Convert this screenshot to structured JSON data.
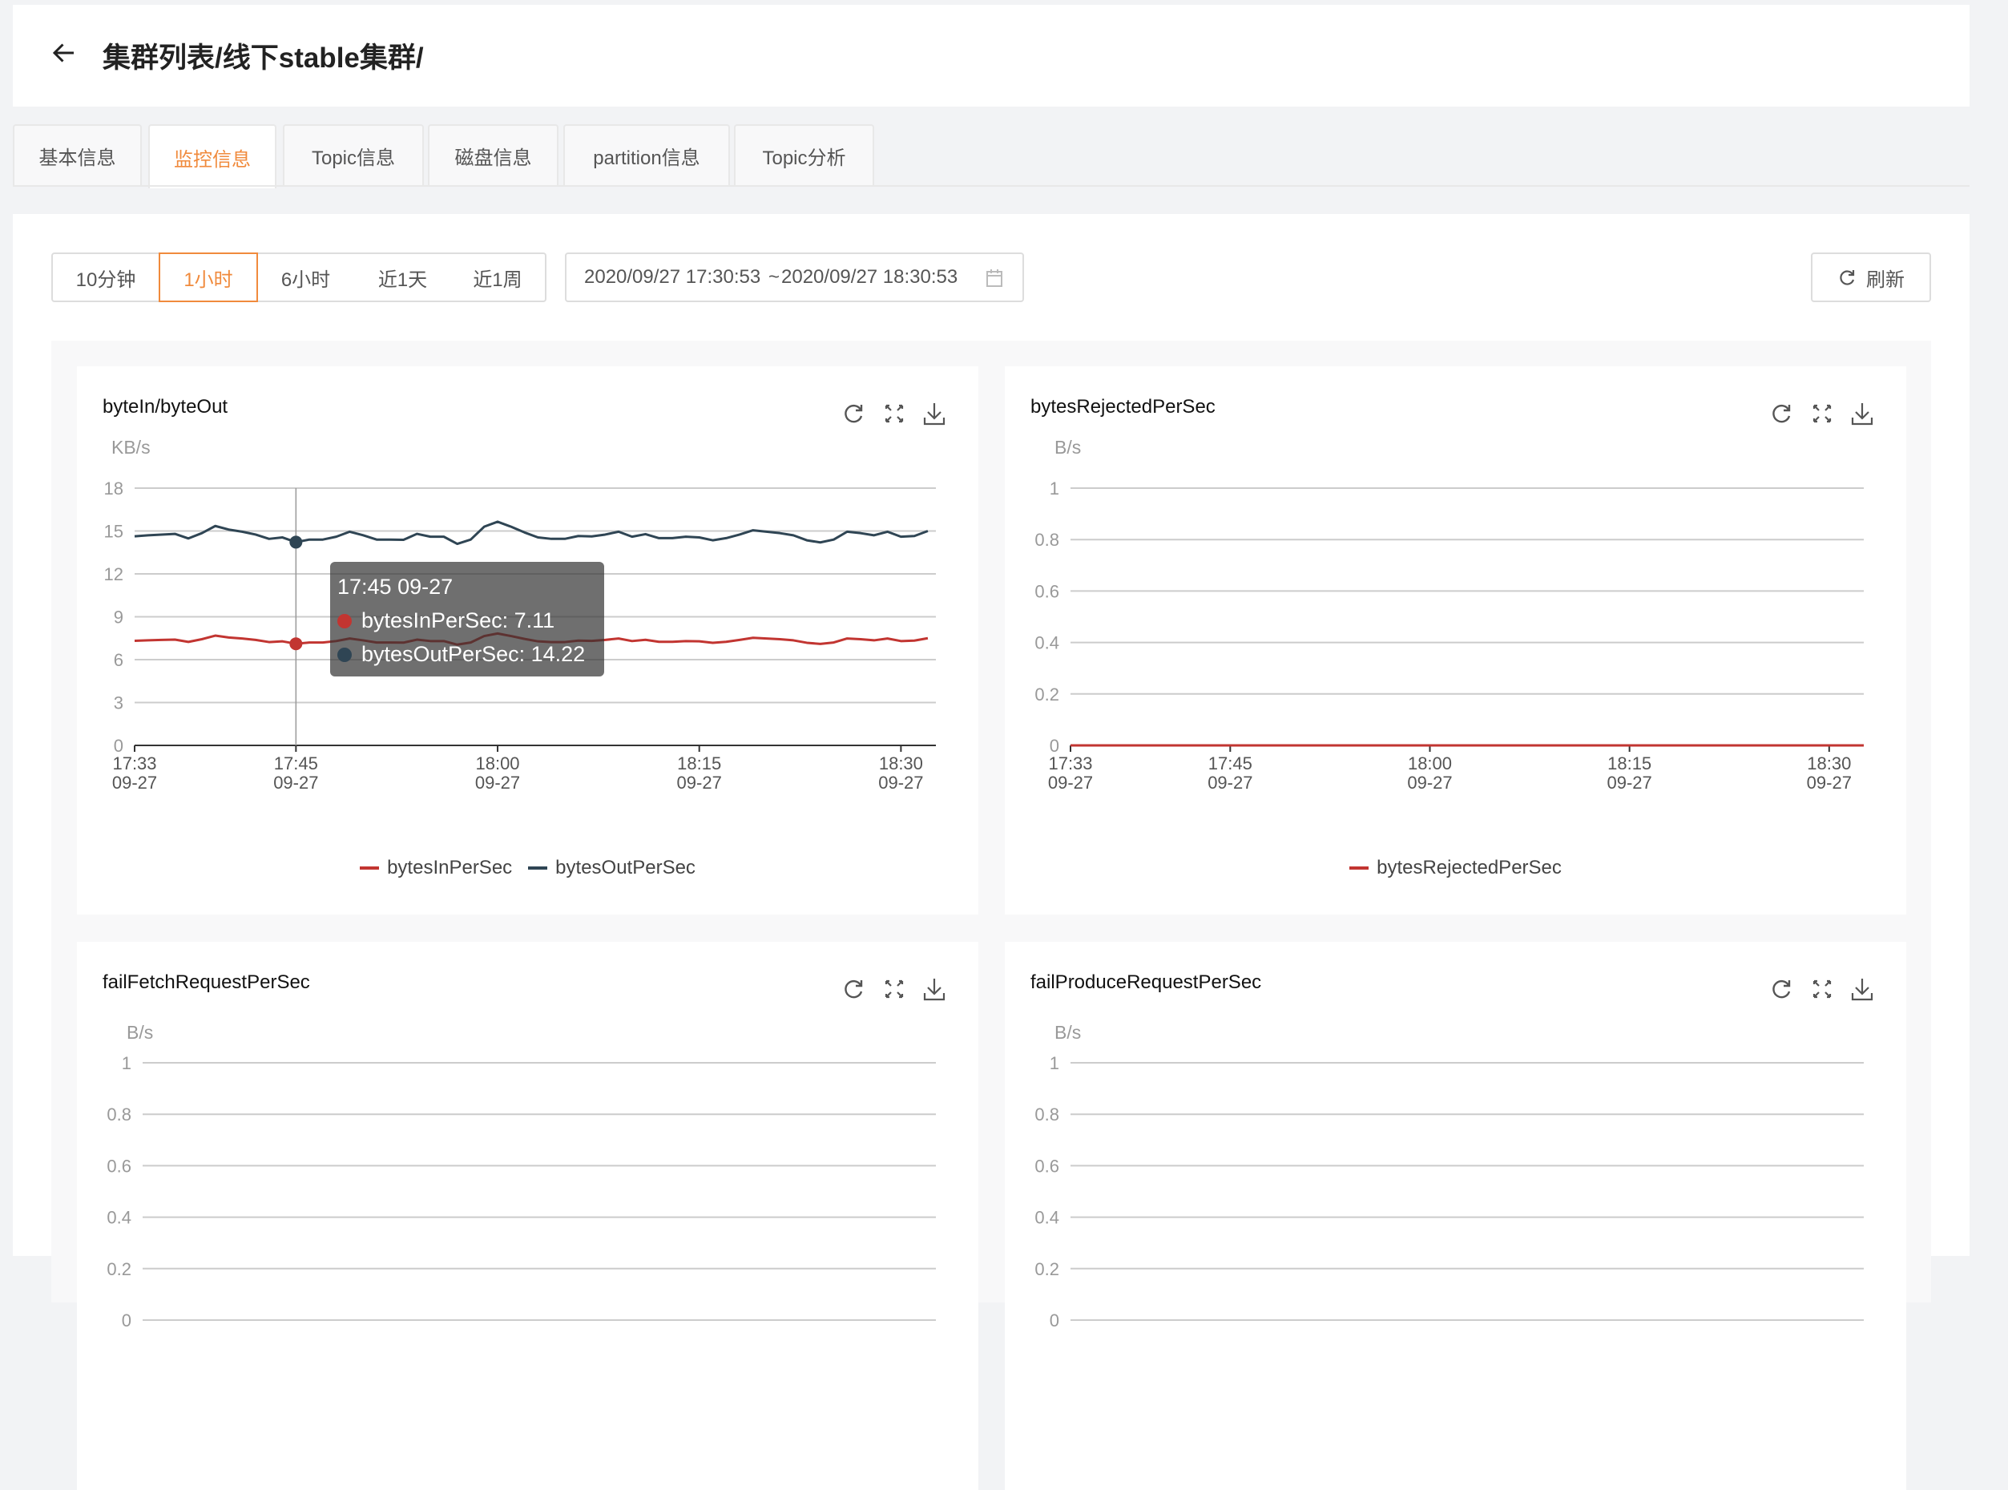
{
  "header": {
    "title": "集群列表/线下stable集群/",
    "back_icon": "arrow-left-icon"
  },
  "tabs": [
    {
      "label": "基本信息",
      "active": false
    },
    {
      "label": "监控信息",
      "active": true
    },
    {
      "label": "Topic信息",
      "active": false
    },
    {
      "label": "磁盘信息",
      "active": false
    },
    {
      "label": "partition信息",
      "active": false
    },
    {
      "label": "Topic分析",
      "active": false
    }
  ],
  "toolbar": {
    "ranges": [
      {
        "label": "10分钟",
        "active": false
      },
      {
        "label": "1小时",
        "active": true
      },
      {
        "label": "6小时",
        "active": false
      },
      {
        "label": "近1天",
        "active": false
      },
      {
        "label": "近1周",
        "active": false
      }
    ],
    "date_start": "2020/09/27 17:30:53",
    "date_sep": "~",
    "date_end": "2020/09/27 18:30:53",
    "refresh_label": "刷新"
  },
  "colors": {
    "accent": "#f08a3c",
    "bytesIn": "#c23531",
    "bytesOut": "#2f4554"
  },
  "tooltip": {
    "title": "17:45 09-27",
    "rows": [
      {
        "label": "bytesInPerSec: 7.11",
        "color": "#c23531"
      },
      {
        "label": "bytesOutPerSec: 14.22",
        "color": "#2f4554"
      }
    ]
  },
  "chart_data": [
    {
      "type": "line",
      "title": "byteIn/byteOut",
      "unit": "KB/s",
      "ylim": [
        0,
        18
      ],
      "yticks": [
        "0",
        "3",
        "6",
        "9",
        "12",
        "15",
        "18"
      ],
      "xticks": [
        {
          "time": "17:33",
          "date": "09-27"
        },
        {
          "time": "17:45",
          "date": "09-27"
        },
        {
          "time": "18:00",
          "date": "09-27"
        },
        {
          "time": "18:15",
          "date": "09-27"
        },
        {
          "time": "18:30",
          "date": "09-27"
        }
      ],
      "grid": true,
      "legend": "bottom",
      "x": [
        "17:33",
        "17:34",
        "17:35",
        "17:36",
        "17:37",
        "17:38",
        "17:39",
        "17:40",
        "17:41",
        "17:42",
        "17:43",
        "17:44",
        "17:45",
        "17:46",
        "17:47",
        "17:48",
        "17:49",
        "17:50",
        "17:51",
        "17:52",
        "17:53",
        "17:54",
        "17:55",
        "17:56",
        "17:57",
        "17:58",
        "17:59",
        "18:00",
        "18:01",
        "18:02",
        "18:03",
        "18:04",
        "18:05",
        "18:06",
        "18:07",
        "18:08",
        "18:09",
        "18:10",
        "18:11",
        "18:12",
        "18:13",
        "18:14",
        "18:15",
        "18:16",
        "18:17",
        "18:18",
        "18:19",
        "18:20",
        "18:21",
        "18:22",
        "18:23",
        "18:24",
        "18:25",
        "18:26",
        "18:27",
        "18:28",
        "18:29",
        "18:30",
        "18:31",
        "18:32"
      ],
      "series": [
        {
          "name": "bytesInPerSec",
          "color": "#c23531",
          "values": [
            7.32,
            7.35,
            7.38,
            7.4,
            7.24,
            7.43,
            7.68,
            7.55,
            7.48,
            7.38,
            7.23,
            7.28,
            7.11,
            7.2,
            7.2,
            7.3,
            7.48,
            7.35,
            7.2,
            7.2,
            7.19,
            7.4,
            7.3,
            7.3,
            7.05,
            7.2,
            7.65,
            7.83,
            7.65,
            7.45,
            7.28,
            7.23,
            7.23,
            7.33,
            7.31,
            7.38,
            7.48,
            7.3,
            7.39,
            7.25,
            7.25,
            7.3,
            7.28,
            7.18,
            7.25,
            7.38,
            7.53,
            7.48,
            7.43,
            7.35,
            7.18,
            7.1,
            7.2,
            7.48,
            7.43,
            7.35,
            7.48,
            7.3,
            7.33,
            7.5
          ]
        },
        {
          "name": "bytesOutPerSec",
          "color": "#2f4554",
          "values": [
            14.63,
            14.7,
            14.75,
            14.8,
            14.48,
            14.85,
            15.35,
            15.1,
            14.95,
            14.75,
            14.45,
            14.55,
            14.22,
            14.4,
            14.4,
            14.6,
            14.95,
            14.7,
            14.4,
            14.4,
            14.38,
            14.8,
            14.6,
            14.6,
            14.1,
            14.4,
            15.3,
            15.65,
            15.3,
            14.9,
            14.55,
            14.45,
            14.45,
            14.65,
            14.62,
            14.75,
            14.95,
            14.6,
            14.78,
            14.5,
            14.5,
            14.6,
            14.55,
            14.35,
            14.5,
            14.75,
            15.05,
            14.95,
            14.85,
            14.7,
            14.35,
            14.2,
            14.4,
            14.95,
            14.85,
            14.7,
            14.95,
            14.6,
            14.65,
            15.0
          ]
        }
      ],
      "highlight_x": "17:45"
    },
    {
      "type": "line",
      "title": "bytesRejectedPerSec",
      "unit": "B/s",
      "ylim": [
        0,
        1
      ],
      "yticks": [
        "0",
        "0.2",
        "0.4",
        "0.6",
        "0.8",
        "1"
      ],
      "xticks": [
        {
          "time": "17:33",
          "date": "09-27"
        },
        {
          "time": "17:45",
          "date": "09-27"
        },
        {
          "time": "18:00",
          "date": "09-27"
        },
        {
          "time": "18:15",
          "date": "09-27"
        },
        {
          "time": "18:30",
          "date": "09-27"
        }
      ],
      "grid": true,
      "legend": "bottom",
      "x": [
        "17:33",
        "18:32"
      ],
      "series": [
        {
          "name": "bytesRejectedPerSec",
          "color": "#c23531",
          "values": [
            0,
            0
          ]
        }
      ]
    },
    {
      "type": "line",
      "title": "failFetchRequestPerSec",
      "unit": "B/s",
      "ylim": [
        0,
        1
      ],
      "yticks": [
        "0",
        "0.2",
        "0.4",
        "0.6",
        "0.8",
        "1"
      ],
      "grid": true
    },
    {
      "type": "line",
      "title": "failProduceRequestPerSec",
      "unit": "B/s",
      "ylim": [
        0,
        1
      ],
      "yticks": [
        "0",
        "0.2",
        "0.4",
        "0.6",
        "0.8",
        "1"
      ],
      "grid": true
    }
  ]
}
